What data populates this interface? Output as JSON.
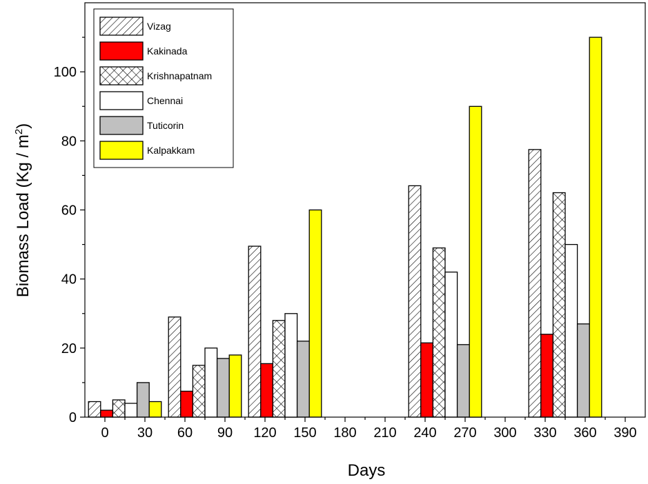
{
  "chart_data": {
    "type": "bar",
    "xlabel": "Days",
    "ylabel": "Biomass Load (Kg / m",
    "ylabel_sup": "2",
    "ylabel_end": ")",
    "x_ticks": [
      "0",
      "30",
      "60",
      "90",
      "120",
      "150",
      "180",
      "210",
      "240",
      "270",
      "300",
      "330",
      "360",
      "390"
    ],
    "y_ticks": [
      "0",
      "20",
      "40",
      "60",
      "80",
      "100"
    ],
    "xlim": [
      -15,
      405
    ],
    "ylim": [
      0,
      120
    ],
    "legend_position": "top-left",
    "series": [
      {
        "name": "Vizag",
        "pattern": "diagonal-hatch",
        "color": "#ffffff",
        "x": [
          15,
          75,
          135,
          255,
          345
        ],
        "values": [
          4.5,
          29,
          49.5,
          67,
          77.5
        ]
      },
      {
        "name": "Kakinada",
        "pattern": "solid",
        "color": "#ff0000",
        "x": [
          15,
          75,
          135,
          255,
          345
        ],
        "values": [
          2,
          7.5,
          15.5,
          21.5,
          24
        ]
      },
      {
        "name": "Krishnapatnam",
        "pattern": "cross-hatch",
        "color": "#ffffff",
        "x": [
          15,
          75,
          135,
          255,
          345
        ],
        "values": [
          5,
          15,
          28,
          49,
          65
        ]
      },
      {
        "name": "Chennai",
        "pattern": "solid",
        "color": "#ffffff",
        "x": [
          15,
          75,
          135,
          255,
          345
        ],
        "values": [
          4,
          20,
          30,
          42,
          50
        ]
      },
      {
        "name": "Tuticorin",
        "pattern": "solid",
        "color": "#c0c0c0",
        "x": [
          15,
          75,
          135,
          255,
          345
        ],
        "values": [
          10,
          17,
          22,
          21,
          27
        ]
      },
      {
        "name": "Kalpakkam",
        "pattern": "solid",
        "color": "#ffff00",
        "x": [
          15,
          75,
          135,
          255,
          345
        ],
        "values": [
          4.5,
          18,
          60,
          90,
          110
        ]
      }
    ]
  }
}
